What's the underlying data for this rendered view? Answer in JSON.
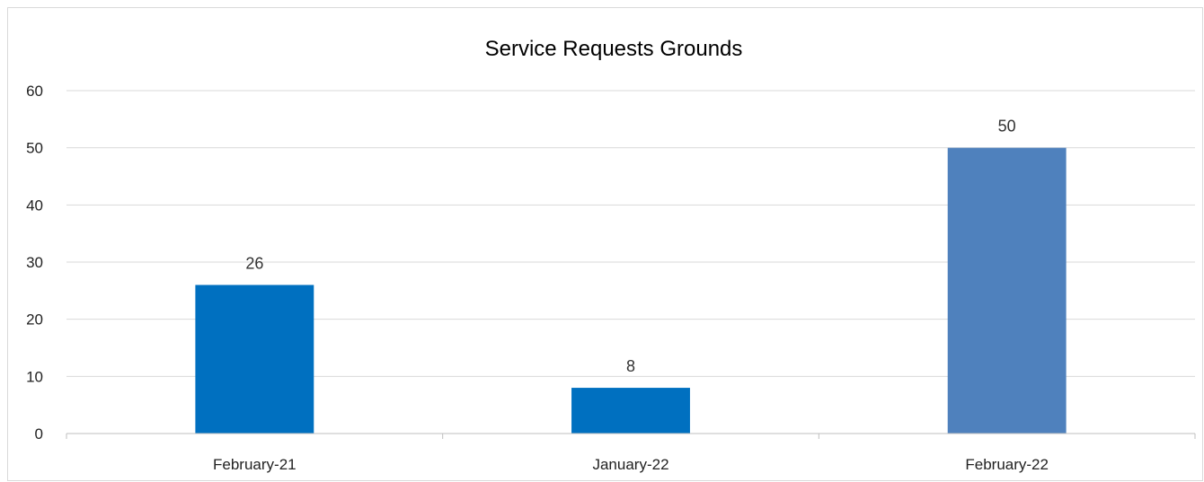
{
  "chart_data": {
    "type": "bar",
    "title": "Service Requests Grounds",
    "xlabel": "",
    "ylabel": "",
    "categories": [
      "February-21",
      "January-22",
      "February-22"
    ],
    "values": [
      26,
      8,
      50
    ],
    "data_labels": [
      "26",
      "8",
      "50"
    ],
    "ylim": [
      0,
      60
    ],
    "yticks": [
      0,
      10,
      20,
      30,
      40,
      50,
      60
    ],
    "ytick_labels": [
      "0",
      "10",
      "20",
      "30",
      "40",
      "50",
      "60"
    ],
    "grid": true,
    "legend": "none",
    "colors": [
      "#0070C0",
      "#0070C0",
      "#4F81BD"
    ],
    "gridline_color": "#d9d9d9",
    "axis_color": "#bfbfbf"
  }
}
